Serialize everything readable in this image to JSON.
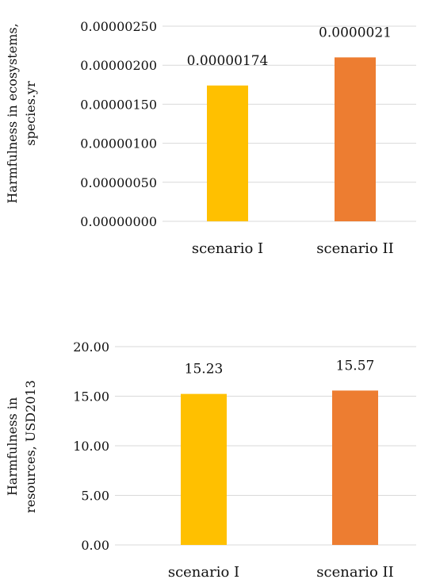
{
  "chart_data": [
    {
      "type": "bar",
      "ylabel_lines": [
        "Harmfulness in ecosystems,",
        "species.yr"
      ],
      "categories": [
        "scenario I",
        "scenario II"
      ],
      "values": [
        1.74e-06,
        2.1e-06
      ],
      "data_labels": [
        "0.00000174",
        "0.0000021"
      ],
      "yticks": [
        "0.00000000",
        "0.00000050",
        "0.00000100",
        "0.00000150",
        "0.00000200",
        "0.00000250"
      ],
      "ylim": [
        0,
        2.5e-06
      ],
      "colors": [
        "#FFC000",
        "#ED7D31"
      ],
      "grid": true
    },
    {
      "type": "bar",
      "ylabel_lines": [
        "Harmfulness in",
        "resources, USD2013"
      ],
      "categories": [
        "scenario I",
        "scenario II"
      ],
      "values": [
        15.23,
        15.57
      ],
      "data_labels": [
        "15.23",
        "15.57"
      ],
      "yticks": [
        "0.00",
        "5.00",
        "10.00",
        "15.00",
        "20.00"
      ],
      "ylim": [
        0,
        20
      ],
      "colors": [
        "#FFC000",
        "#ED7D31"
      ],
      "grid": true
    }
  ]
}
